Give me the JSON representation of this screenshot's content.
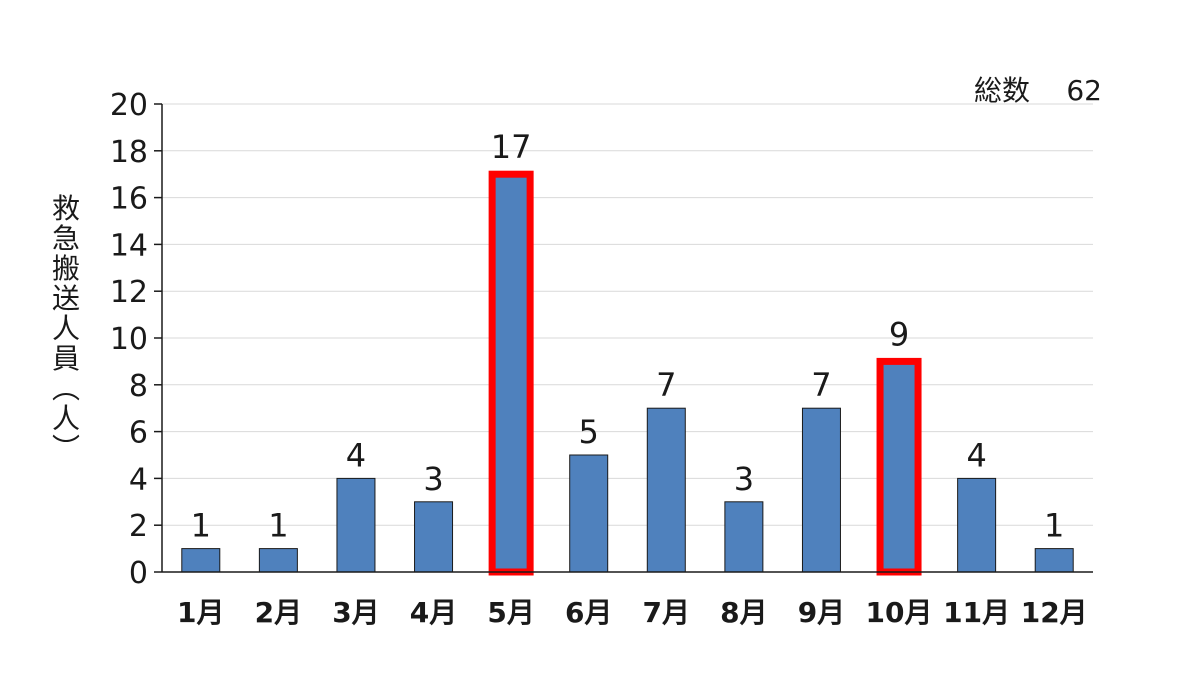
{
  "chart_data": {
    "type": "bar",
    "categories": [
      "1月",
      "2月",
      "3月",
      "4月",
      "5月",
      "6月",
      "7月",
      "8月",
      "9月",
      "10月",
      "11月",
      "12月"
    ],
    "values": [
      1,
      1,
      4,
      3,
      17,
      5,
      7,
      3,
      7,
      9,
      4,
      1
    ],
    "highlighted_categories": [
      "5月",
      "10月"
    ],
    "ylabel": "救急搬送人員（人）",
    "ylim": [
      0,
      20
    ],
    "yticks": [
      0,
      2,
      4,
      6,
      8,
      10,
      12,
      14,
      16,
      18,
      20
    ],
    "grid": true,
    "total_label": "総数",
    "total_value": "62",
    "colors": {
      "bar": "#4f81bd",
      "highlight": "#ff0000",
      "grid": "#d9d9d9",
      "axis": "#1a1a1a"
    }
  }
}
